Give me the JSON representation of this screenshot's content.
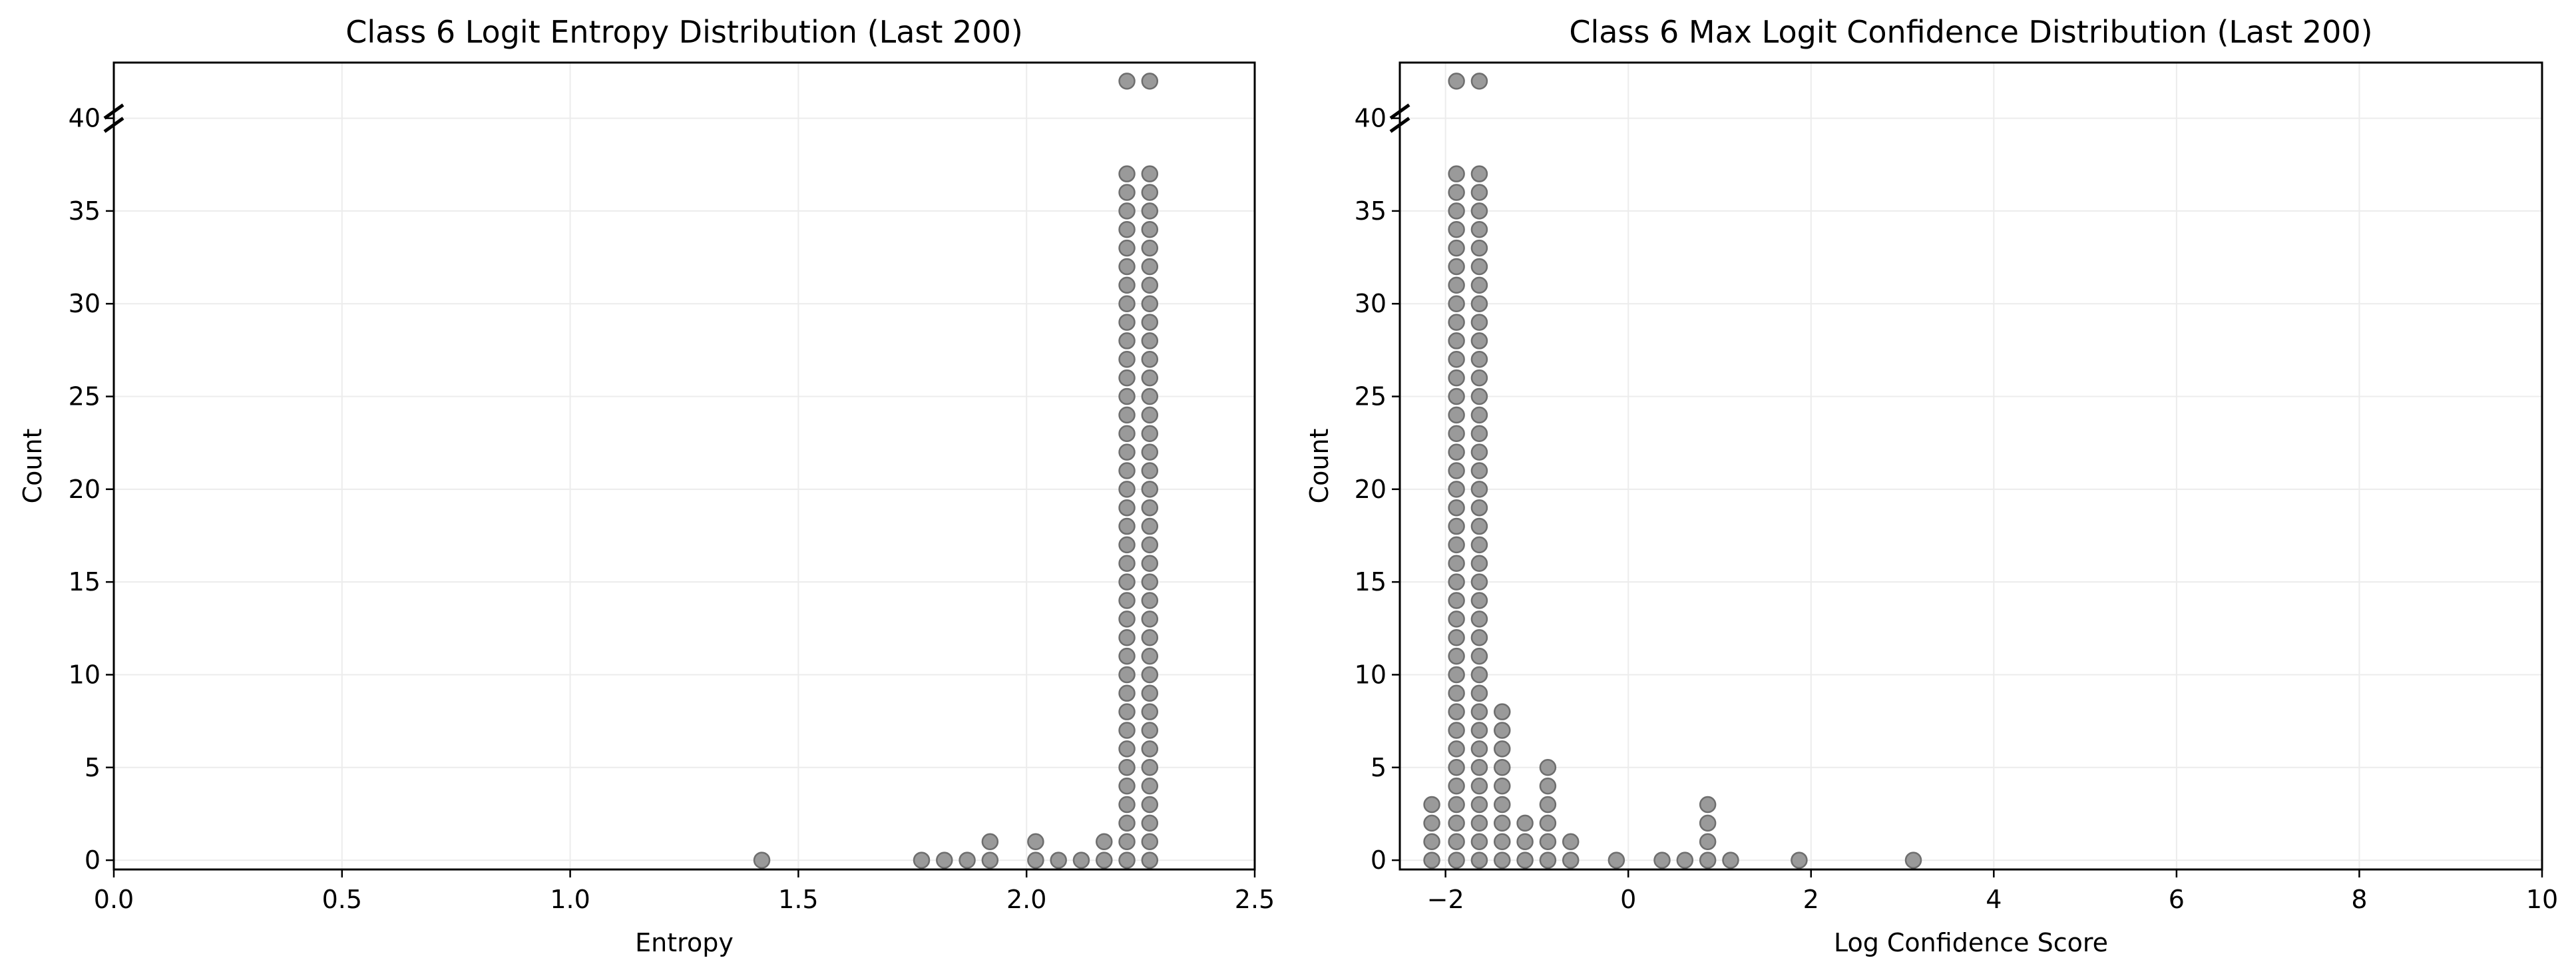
{
  "chart_data": [
    {
      "type": "scatter",
      "title": "Class 6 Logit Entropy Distribution (Last 200)",
      "xlabel": "Entropy",
      "ylabel": "Count",
      "xlim": [
        0.0,
        2.5
      ],
      "ylim": [
        -0.5,
        43
      ],
      "xticks": [
        "0.0",
        "0.5",
        "1.0",
        "1.5",
        "2.0",
        "2.5"
      ],
      "xtick_values": [
        0.0,
        0.5,
        1.0,
        1.5,
        2.0,
        2.5
      ],
      "yticks": [
        "0",
        "5",
        "10",
        "15",
        "20",
        "25",
        "30",
        "35",
        "40"
      ],
      "ytick_values": [
        0,
        5,
        10,
        15,
        20,
        25,
        30,
        35,
        40
      ],
      "y_axis_break": [
        38,
        42
      ],
      "grid": true,
      "marker_color": "#9a9a9a",
      "stacks": [
        {
          "x": 1.42,
          "count": 1
        },
        {
          "x": 1.77,
          "count": 1
        },
        {
          "x": 1.82,
          "count": 1
        },
        {
          "x": 1.87,
          "count": 1
        },
        {
          "x": 1.92,
          "count": 2
        },
        {
          "x": 2.02,
          "count": 2
        },
        {
          "x": 2.07,
          "count": 1
        },
        {
          "x": 2.12,
          "count": 1
        },
        {
          "x": 2.17,
          "count": 2
        },
        {
          "x": 2.22,
          "count": 39,
          "top": 42
        },
        {
          "x": 2.27,
          "count": 39,
          "top": 42
        }
      ]
    },
    {
      "type": "scatter",
      "title": "Class 6 Max Logit Confidence Distribution (Last 200)",
      "xlabel": "Log Confidence Score",
      "ylabel": "Count",
      "xlim": [
        -2.5,
        10
      ],
      "ylim": [
        -0.5,
        43
      ],
      "xticks": [
        "−2",
        "0",
        "2",
        "4",
        "6",
        "8",
        "10"
      ],
      "xtick_values": [
        -2,
        0,
        2,
        4,
        6,
        8,
        10
      ],
      "yticks": [
        "0",
        "5",
        "10",
        "15",
        "20",
        "25",
        "30",
        "35",
        "40"
      ],
      "ytick_values": [
        0,
        5,
        10,
        15,
        20,
        25,
        30,
        35,
        40
      ],
      "y_axis_break": [
        38,
        42
      ],
      "grid": true,
      "marker_color": "#9a9a9a",
      "stacks": [
        {
          "x": -2.15,
          "count": 4
        },
        {
          "x": -1.88,
          "count": 39,
          "top": 42
        },
        {
          "x": -1.63,
          "count": 39,
          "top": 42
        },
        {
          "x": -1.38,
          "count": 9
        },
        {
          "x": -1.13,
          "count": 3
        },
        {
          "x": -0.88,
          "count": 6
        },
        {
          "x": -0.63,
          "count": 2
        },
        {
          "x": -0.13,
          "count": 1
        },
        {
          "x": 0.37,
          "count": 1
        },
        {
          "x": 0.62,
          "count": 1
        },
        {
          "x": 0.87,
          "count": 4
        },
        {
          "x": 1.12,
          "count": 1
        },
        {
          "x": 1.87,
          "count": 1
        },
        {
          "x": 3.12,
          "count": 1
        }
      ]
    }
  ]
}
